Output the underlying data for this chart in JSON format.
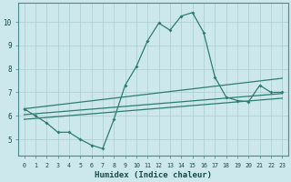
{
  "xlabel": "Humidex (Indice chaleur)",
  "background_color": "#cce8ec",
  "grid_color": "#aacccc",
  "line_color": "#2d7d6e",
  "xlim": [
    -0.5,
    23.5
  ],
  "ylim": [
    4.3,
    10.8
  ],
  "xticks": [
    0,
    1,
    2,
    3,
    4,
    5,
    6,
    7,
    8,
    9,
    10,
    11,
    12,
    13,
    14,
    15,
    16,
    17,
    18,
    19,
    20,
    21,
    22,
    23
  ],
  "yticks": [
    5,
    6,
    7,
    8,
    9,
    10
  ],
  "main_x": [
    0,
    1,
    2,
    3,
    4,
    5,
    6,
    7,
    8,
    9,
    10,
    11,
    12,
    13,
    14,
    15,
    16,
    17,
    18,
    19,
    20,
    21,
    22,
    23
  ],
  "main_y": [
    6.3,
    6.0,
    5.7,
    5.3,
    5.3,
    5.0,
    4.75,
    4.6,
    5.85,
    7.3,
    8.1,
    9.2,
    9.95,
    9.65,
    10.25,
    10.4,
    9.55,
    7.65,
    6.8,
    6.65,
    6.6,
    7.3,
    7.0,
    7.0
  ],
  "reg1_start": 6.3,
  "reg1_end": 7.6,
  "reg2_start": 6.05,
  "reg2_end": 6.95,
  "reg3_start": 5.85,
  "reg3_end": 6.75
}
